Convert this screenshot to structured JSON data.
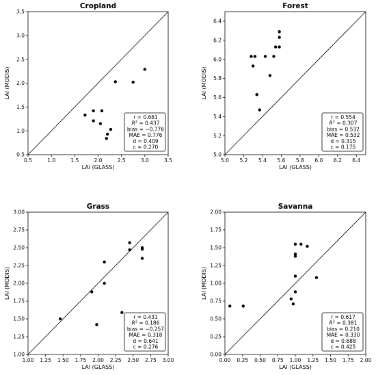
{
  "chart_data": [
    {
      "type": "scatter",
      "title": "Cropland",
      "xlabel": "LAI (GLASS)",
      "ylabel": "LAI (MODIS)",
      "xlim": [
        0.5,
        3.5
      ],
      "ylim": [
        0.5,
        3.5
      ],
      "xticks": [
        "0.5",
        "1.0",
        "1.5",
        "2.0",
        "2.5",
        "3.0",
        "3.5"
      ],
      "yticks": [
        "0.5",
        "1.0",
        "1.5",
        "2.0",
        "2.5",
        "3.0",
        "3.5"
      ],
      "points": [
        [
          1.72,
          1.33
        ],
        [
          1.9,
          1.42
        ],
        [
          1.9,
          1.21
        ],
        [
          2.05,
          1.15
        ],
        [
          2.08,
          1.42
        ],
        [
          2.18,
          0.84
        ],
        [
          2.2,
          0.93
        ],
        [
          2.27,
          1.03
        ],
        [
          2.37,
          2.03
        ],
        [
          2.75,
          2.02
        ],
        [
          3.0,
          2.29
        ]
      ],
      "stats": [
        {
          "label": "r",
          "value": "0.661"
        },
        {
          "label": "R2",
          "value": "0.437"
        },
        {
          "label": "bias",
          "value": "−0.776"
        },
        {
          "label": "MAE",
          "value": "0.776"
        },
        {
          "label": "d",
          "value": "0.409"
        },
        {
          "label": "c",
          "value": "0.270"
        }
      ]
    },
    {
      "type": "scatter",
      "title": "Forest",
      "xlabel": "LAI (GLASS)",
      "ylabel": "LAI (MODIS)",
      "xlim": [
        5.0,
        6.5
      ],
      "ylim": [
        5.0,
        6.5
      ],
      "xticks": [
        "5.0",
        "5.2",
        "5.4",
        "5.6",
        "5.8",
        "6.0",
        "6.2",
        "6.4"
      ],
      "yticks": [
        "5.0",
        "5.2",
        "5.4",
        "5.6",
        "5.8",
        "6.0",
        "6.2",
        "6.4"
      ],
      "points": [
        [
          5.28,
          6.03
        ],
        [
          5.3,
          5.93
        ],
        [
          5.32,
          6.03
        ],
        [
          5.34,
          5.63
        ],
        [
          5.37,
          5.47
        ],
        [
          5.43,
          6.03
        ],
        [
          5.48,
          5.83
        ],
        [
          5.52,
          6.03
        ],
        [
          5.54,
          6.13
        ],
        [
          5.58,
          6.13
        ],
        [
          5.58,
          6.23
        ],
        [
          5.58,
          6.29
        ]
      ],
      "stats": [
        {
          "label": "r",
          "value": "0.554"
        },
        {
          "label": "R2",
          "value": "0.307"
        },
        {
          "label": "bias",
          "value": "0.532"
        },
        {
          "label": "MAE",
          "value": "0.532"
        },
        {
          "label": "d",
          "value": "0.315"
        },
        {
          "label": "c",
          "value": "0.175"
        }
      ]
    },
    {
      "type": "scatter",
      "title": "Grass",
      "xlabel": "LAI (GLASS)",
      "ylabel": "LAI (MODIS)",
      "xlim": [
        1.0,
        3.0
      ],
      "ylim": [
        1.0,
        3.0
      ],
      "xticks": [
        "1.00",
        "1.25",
        "1.50",
        "1.75",
        "2.00",
        "2.25",
        "2.50",
        "2.75",
        "3.00"
      ],
      "yticks": [
        "1.00",
        "1.25",
        "1.50",
        "1.75",
        "2.00",
        "2.25",
        "2.50",
        "2.75",
        "3.00"
      ],
      "points": [
        [
          1.46,
          1.5
        ],
        [
          1.91,
          1.88
        ],
        [
          1.98,
          1.42
        ],
        [
          2.09,
          2.3
        ],
        [
          2.09,
          2.0
        ],
        [
          2.34,
          1.59
        ],
        [
          2.45,
          2.57
        ],
        [
          2.45,
          2.47
        ],
        [
          2.63,
          2.5
        ],
        [
          2.63,
          2.48
        ],
        [
          2.63,
          2.35
        ]
      ],
      "stats": [
        {
          "label": "r",
          "value": "0.431"
        },
        {
          "label": "R2",
          "value": "0.186"
        },
        {
          "label": "bias",
          "value": "−0.257"
        },
        {
          "label": "MAE",
          "value": "0.318"
        },
        {
          "label": "d",
          "value": "0.641"
        },
        {
          "label": "c",
          "value": "0.276"
        }
      ]
    },
    {
      "type": "scatter",
      "title": "Savanna",
      "xlabel": "LAI (GLASS)",
      "ylabel": "LAI (MODIS)",
      "xlim": [
        0.0,
        2.0
      ],
      "ylim": [
        0.0,
        2.0
      ],
      "xticks": [
        "0.00",
        "0.25",
        "0.50",
        "0.75",
        "1.00",
        "1.25",
        "1.50",
        "1.75",
        "2.00"
      ],
      "yticks": [
        "0.00",
        "0.25",
        "0.50",
        "0.75",
        "1.00",
        "1.25",
        "1.50",
        "1.75",
        "2.00"
      ],
      "points": [
        [
          0.07,
          0.68
        ],
        [
          0.26,
          0.68
        ],
        [
          0.94,
          0.78
        ],
        [
          0.97,
          0.71
        ],
        [
          1.0,
          0.88
        ],
        [
          1.0,
          1.1
        ],
        [
          1.0,
          1.38
        ],
        [
          1.0,
          1.41
        ],
        [
          1.0,
          1.55
        ],
        [
          1.08,
          1.55
        ],
        [
          1.17,
          1.52
        ],
        [
          1.3,
          1.08
        ]
      ],
      "stats": [
        {
          "label": "r",
          "value": "0.617"
        },
        {
          "label": "R2",
          "value": "0.381"
        },
        {
          "label": "bias",
          "value": "0.210"
        },
        {
          "label": "MAE",
          "value": "0.330"
        },
        {
          "label": "d",
          "value": "0.688"
        },
        {
          "label": "c",
          "value": "0.425"
        }
      ]
    }
  ]
}
